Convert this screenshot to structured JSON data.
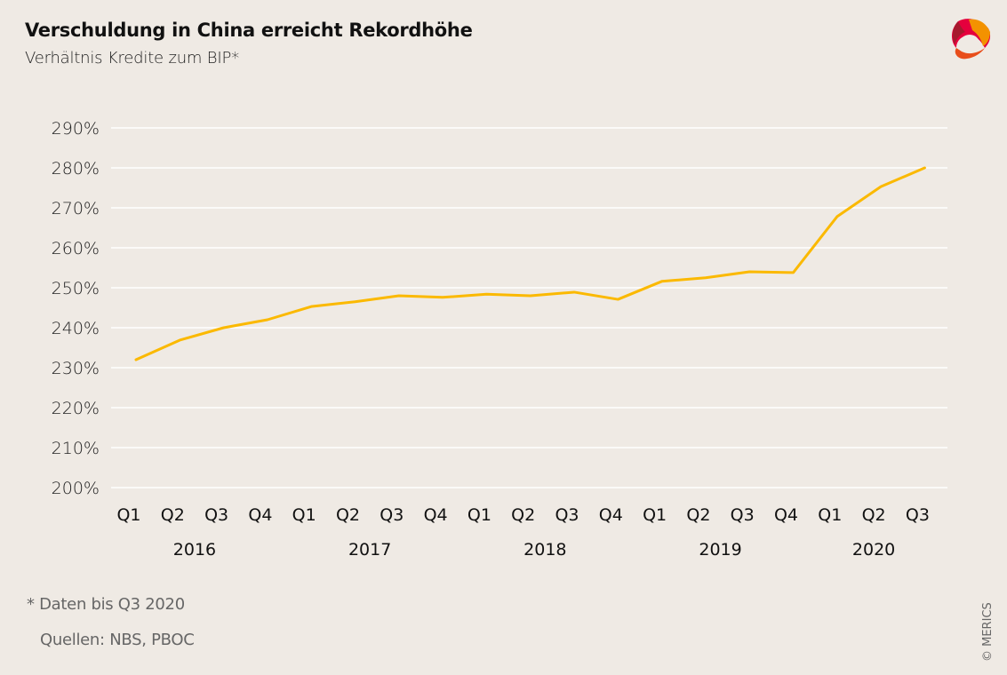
{
  "header": {
    "title": "Verschuldung in China erreicht Rekordhöhe",
    "subtitle": "Verhältnis Kredite zum BIP*"
  },
  "logo": {
    "icon": "merics-logo-icon",
    "colors": [
      "#c0282d",
      "#e5003d",
      "#f39200",
      "#e84e1b"
    ]
  },
  "footer": {
    "footnote": "* Daten bis Q3 2020",
    "source": "Quellen: NBS, PBOC",
    "credit": "© MERICS"
  },
  "colors": {
    "background": "#efeae4",
    "line": "#fbb900",
    "grid": "#ffffff",
    "axis_text": "#111111"
  },
  "chart_data": {
    "type": "line",
    "title": "Verschuldung in China erreicht Rekordhöhe",
    "subtitle": "Verhältnis Kredite zum BIP*",
    "xlabel": "",
    "ylabel": "",
    "ylim": [
      200,
      290
    ],
    "yticks": [
      200,
      210,
      220,
      230,
      240,
      250,
      260,
      270,
      280,
      290
    ],
    "ytick_labels": [
      "200%",
      "210%",
      "220%",
      "230%",
      "240%",
      "250%",
      "260%",
      "270%",
      "280%",
      "290%"
    ],
    "grid": true,
    "legend": "none",
    "categories": [
      "Q1",
      "Q2",
      "Q3",
      "Q4",
      "Q1",
      "Q2",
      "Q3",
      "Q4",
      "Q1",
      "Q2",
      "Q3",
      "Q4",
      "Q1",
      "Q2",
      "Q3",
      "Q4",
      "Q1",
      "Q2",
      "Q3"
    ],
    "year_groups": [
      {
        "label": "2016",
        "start": 0,
        "end": 3
      },
      {
        "label": "2017",
        "start": 4,
        "end": 7
      },
      {
        "label": "2018",
        "start": 8,
        "end": 11
      },
      {
        "label": "2019",
        "start": 12,
        "end": 15
      },
      {
        "label": "2020",
        "start": 16,
        "end": 18
      }
    ],
    "series": [
      {
        "name": "Kredite zum BIP",
        "values": [
          232.0,
          236.9,
          240.0,
          242.0,
          245.3,
          246.5,
          248.0,
          247.6,
          248.4,
          248.0,
          248.9,
          247.1,
          251.6,
          252.5,
          254.0,
          253.8,
          267.8,
          275.3,
          280.0
        ]
      }
    ]
  }
}
